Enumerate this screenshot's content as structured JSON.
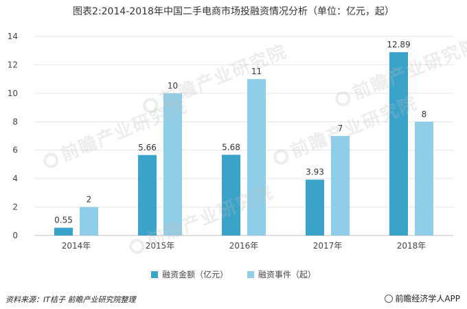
{
  "chart_data": {
    "type": "bar",
    "title": "图表2:2014-2018年中国二手电商市场投融资情况分析（单位：亿元，起）",
    "categories": [
      "2014年",
      "2015年",
      "2016年",
      "2017年",
      "2018年"
    ],
    "series": [
      {
        "name": "融资金额（亿元）",
        "values": [
          0.55,
          5.66,
          5.68,
          3.93,
          12.89
        ],
        "color": "#3aa3c9",
        "labels": [
          "0.55",
          "5.66",
          "5.68",
          "3.93",
          "12.89"
        ]
      },
      {
        "name": "融资事件（起）",
        "values": [
          2,
          10,
          11,
          7,
          8
        ],
        "color": "#8fcde8",
        "labels": [
          "2",
          "10",
          "11",
          "7",
          "8"
        ]
      }
    ],
    "ylim": [
      0,
      14
    ],
    "yticks": [
      0,
      2,
      4,
      6,
      8,
      10,
      12,
      14
    ],
    "grid": true,
    "legend": "bottom",
    "xlabel": "",
    "ylabel": ""
  },
  "footer": {
    "source": "资料来源：IT桔子 前瞻产业研究院整理",
    "brand": "前瞻经济学人APP"
  },
  "watermark": {
    "text": "前瞻产业研究院"
  }
}
